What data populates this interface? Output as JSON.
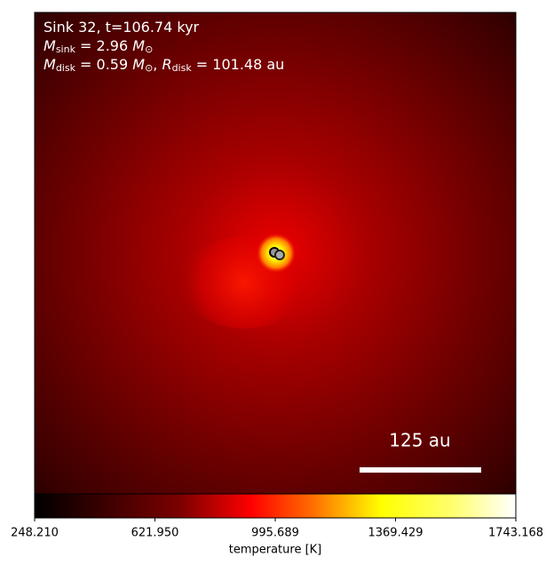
{
  "chart_data": {
    "type": "image",
    "annotations": [
      [
        {
          "text": "Sink 32, t=106.74 kyr",
          "style": "normal"
        }
      ],
      [
        {
          "text": "M",
          "style": "italic"
        },
        {
          "text": "sink",
          "style": "sub"
        },
        {
          "text": " = 2.96 ",
          "style": "normal"
        },
        {
          "text": "M",
          "style": "italic"
        },
        {
          "text": "⊙",
          "style": "sub"
        }
      ],
      [
        {
          "text": "M",
          "style": "italic"
        },
        {
          "text": "disk",
          "style": "sub"
        },
        {
          "text": " = 0.59 ",
          "style": "normal"
        },
        {
          "text": "M",
          "style": "italic"
        },
        {
          "text": "⊙",
          "style": "sub"
        },
        {
          "text": ", ",
          "style": "normal"
        },
        {
          "text": "R",
          "style": "italic"
        },
        {
          "text": "disk",
          "style": "sub"
        },
        {
          "text": " = 101.48 au",
          "style": "normal"
        }
      ]
    ],
    "scalebar_label": "125 au",
    "colorbar": {
      "label": "temperature [K]",
      "clim": [
        248.21,
        1743.168
      ],
      "ticks": [
        {
          "value": 248.21,
          "label": "248.210"
        },
        {
          "value": 621.95,
          "label": "621.950"
        },
        995.689,
        1369.429,
        1743.168
      ]
    }
  }
}
